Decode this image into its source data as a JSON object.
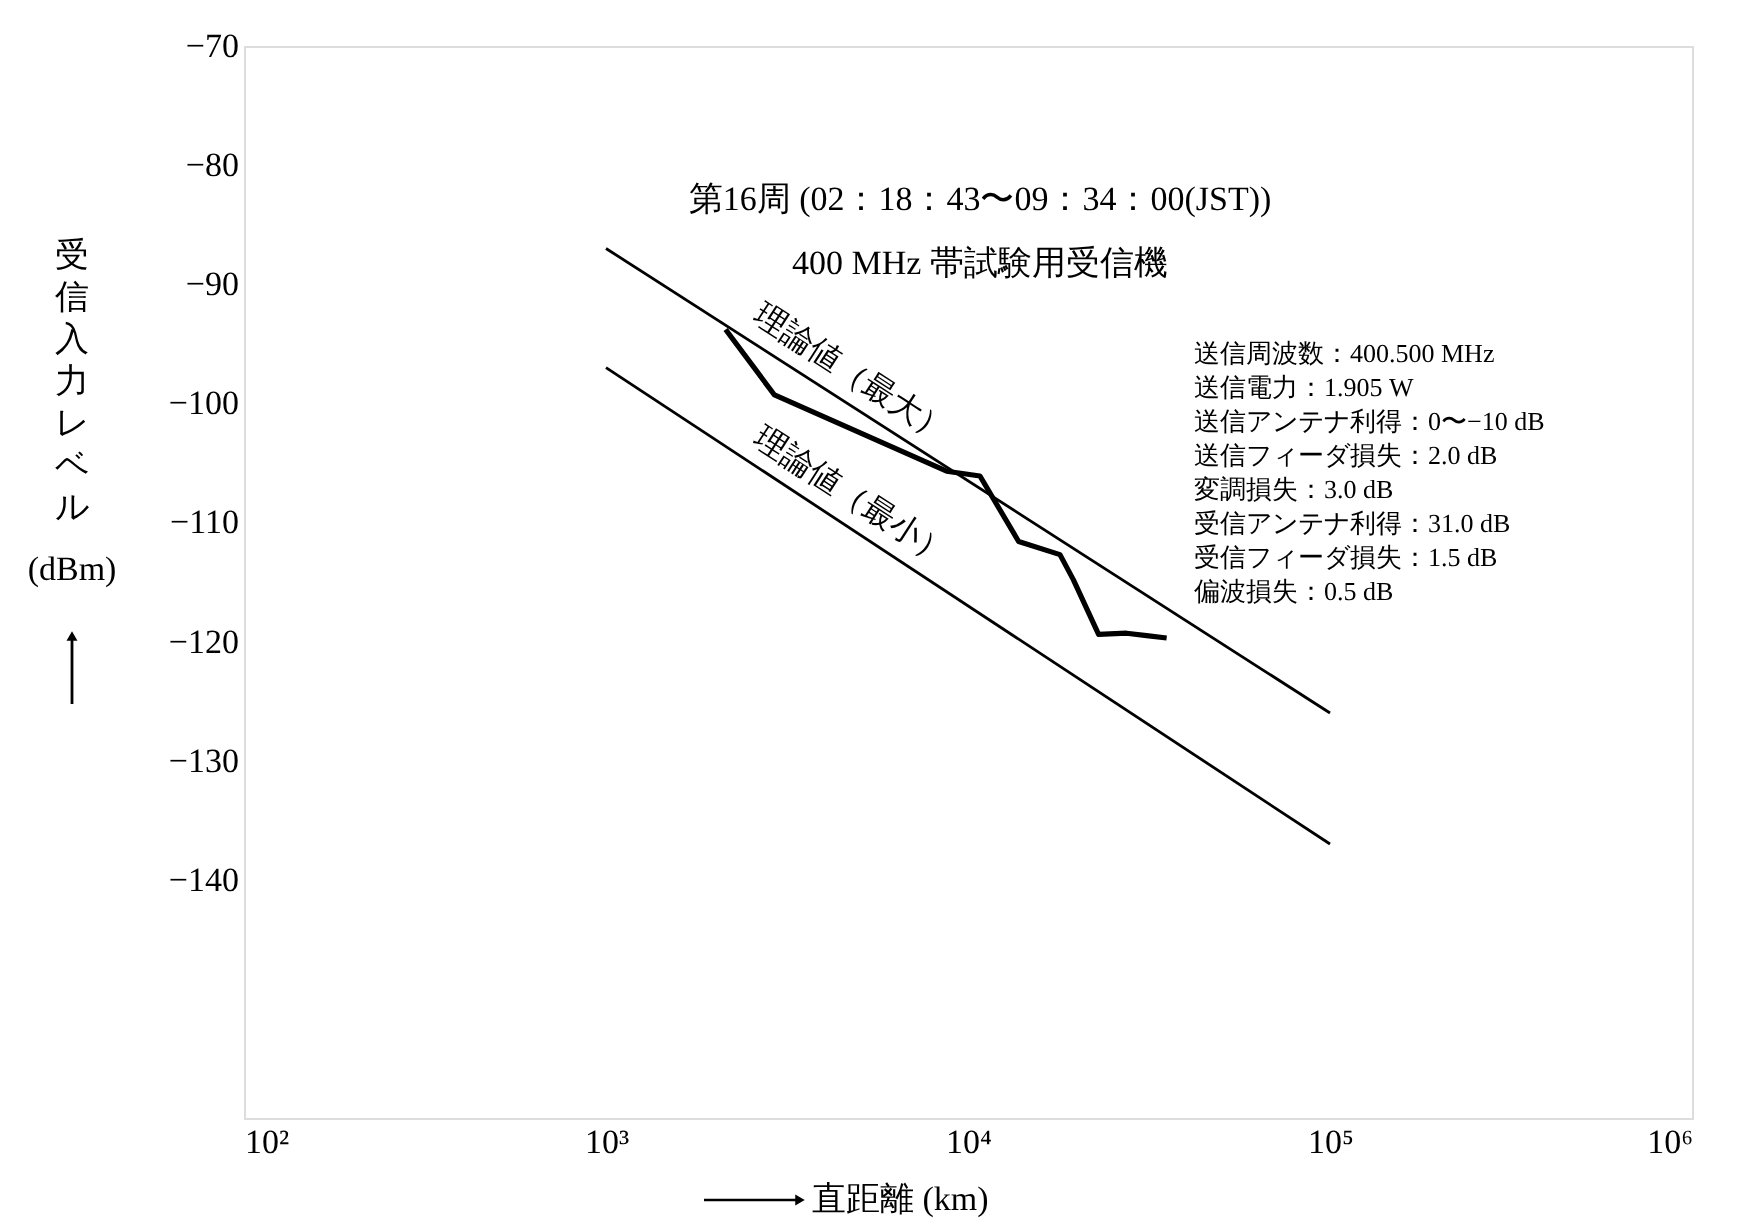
{
  "chart_data": {
    "type": "line",
    "title": "第16周 (02：18：43〜09：34：00(JST))",
    "subtitle": "400 MHz 帯試験用受信機",
    "xlabel": "直距離 (km)",
    "ylabel": "受信入力レベル (dBm)",
    "log": "x",
    "xlim": [
      100,
      1000000
    ],
    "xticks": [
      {
        "value": 100,
        "label": "10²"
      },
      {
        "value": 1000,
        "label": "10³"
      },
      {
        "value": 10000,
        "label": "10⁴"
      },
      {
        "value": 100000,
        "label": "10⁵"
      },
      {
        "value": 1000000,
        "label": "10⁶"
      }
    ],
    "ylim": [
      -160,
      -70
    ],
    "yticks": [
      {
        "value": -70,
        "label": "−70"
      },
      {
        "value": -80,
        "label": "−80"
      },
      {
        "value": -90,
        "label": "−90"
      },
      {
        "value": -100,
        "label": "−100"
      },
      {
        "value": -110,
        "label": "−110"
      },
      {
        "value": -120,
        "label": "−120"
      },
      {
        "value": -130,
        "label": "−130"
      },
      {
        "value": -140,
        "label": "−140"
      }
    ],
    "grid": false,
    "marker": "none",
    "line_style": "solid",
    "series": [
      {
        "name": "理論値（最大）",
        "color": "#000000",
        "x": [
          1000,
          100000
        ],
        "values": [
          -87,
          -126
        ]
      },
      {
        "name": "理論値（最小）",
        "color": "#000000",
        "x": [
          1000,
          100000
        ],
        "values": [
          -97,
          -137
        ]
      },
      {
        "color": "#000000",
        "x": [
          2140,
          2920,
          8730,
          10790,
          13800,
          17950,
          19540,
          22950,
          27420,
          31140,
          35380
        ],
        "values": [
          -93.8,
          -99.3,
          -105.7,
          -106.1,
          -111.6,
          -112.7,
          -114.8,
          -119.4,
          -119.3,
          -119.5,
          -119.7
        ]
      }
    ],
    "annotations": [
      "送信周波数：400.500 MHz",
      "送信電力：1.905 W",
      "送信アンテナ利得：0〜−10 dB",
      "送信フィーダ損失：2.0 dB",
      "変調損失：3.0 dB",
      "受信アンテナ利得：31.0 dB",
      "受信フィーダ損失：1.5 dB",
      "偏波損失：0.5 dB"
    ]
  }
}
